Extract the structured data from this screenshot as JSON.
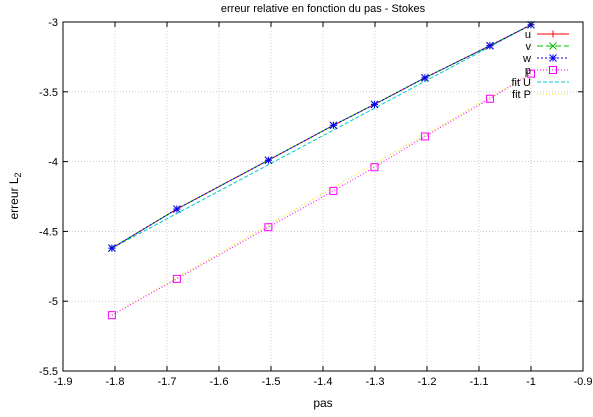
{
  "chart_data": {
    "type": "line",
    "title": "erreur relative en fonction du pas - Stokes",
    "xlabel": "pas",
    "ylabel": "erreur L",
    "ylabel_subscript": "2",
    "xlim": [
      -1.9,
      -0.9
    ],
    "ylim": [
      -5.5,
      -3.0
    ],
    "xticks": [
      "-1.9",
      "-1.8",
      "-1.7",
      "-1.6",
      "-1.5",
      "-1.4",
      "-1.3",
      "-1.2",
      "-1.1",
      "-1",
      "-0.9"
    ],
    "yticks": [
      "-5.5",
      "-5",
      "-4.5",
      "-4",
      "-3.5",
      "-3"
    ],
    "grid": true,
    "legend_position": "top-right",
    "x": [
      -1.806,
      -1.681,
      -1.505,
      -1.38,
      -1.301,
      -1.204,
      -1.079,
      -1.0
    ],
    "series": [
      {
        "name": "u",
        "color": "#ff0000",
        "marker": "plus",
        "dash": "",
        "values": [
          -4.62,
          -4.34,
          -3.99,
          -3.74,
          -3.59,
          -3.4,
          -3.17,
          -3.02
        ]
      },
      {
        "name": "v",
        "color": "#00c000",
        "marker": "cross",
        "dash": "6,3",
        "values": [
          -4.62,
          -4.34,
          -3.99,
          -3.74,
          -3.59,
          -3.4,
          -3.17,
          -3.02
        ]
      },
      {
        "name": "w",
        "color": "#0000ff",
        "marker": "star",
        "dash": "2,2",
        "values": [
          -4.62,
          -4.34,
          -3.99,
          -3.74,
          -3.59,
          -3.4,
          -3.17,
          -3.02
        ]
      },
      {
        "name": "p",
        "color": "#ff00ff",
        "marker": "square",
        "dash": "1,2",
        "values": [
          -5.1,
          -4.84,
          -4.47,
          -4.21,
          -4.04,
          -3.82,
          -3.55,
          -3.37
        ]
      }
    ],
    "fits": [
      {
        "name": "fit U",
        "color": "#00c8c8",
        "dash": "4,2",
        "x_range": [
          -1.806,
          -1.0
        ],
        "y_range": [
          -4.62,
          -3.02
        ]
      },
      {
        "name": "fit P",
        "color": "#e8e000",
        "dash": "1,2",
        "x_range": [
          -1.806,
          -1.0
        ],
        "y_range": [
          -5.1,
          -3.37
        ]
      }
    ]
  }
}
